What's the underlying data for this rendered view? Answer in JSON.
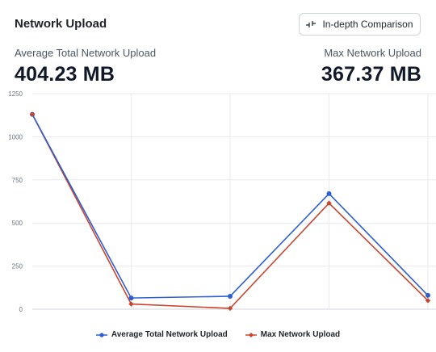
{
  "header": {
    "title": "Network Upload",
    "button_label": "In-depth Comparison",
    "button_icon": "compare-icon"
  },
  "stats": {
    "left": {
      "label": "Average Total Network Upload",
      "value": "404.23 MB"
    },
    "right": {
      "label": "Max Network Upload",
      "value": "367.37 MB"
    }
  },
  "chart_data": {
    "type": "line",
    "x": [
      0,
      1,
      2,
      3,
      4
    ],
    "ylim": [
      0,
      1250
    ],
    "yticks": [
      0,
      250,
      500,
      750,
      1000,
      1250
    ],
    "grid": true,
    "legend": "bottom",
    "series": [
      {
        "name": "Average Total Network Upload",
        "color": "#2d5fd3",
        "marker": "circle",
        "values": [
          1130,
          65,
          75,
          670,
          80
        ]
      },
      {
        "name": "Max Network Upload",
        "color": "#c9452e",
        "marker": "diamond",
        "values": [
          1130,
          30,
          5,
          615,
          50
        ]
      }
    ]
  }
}
